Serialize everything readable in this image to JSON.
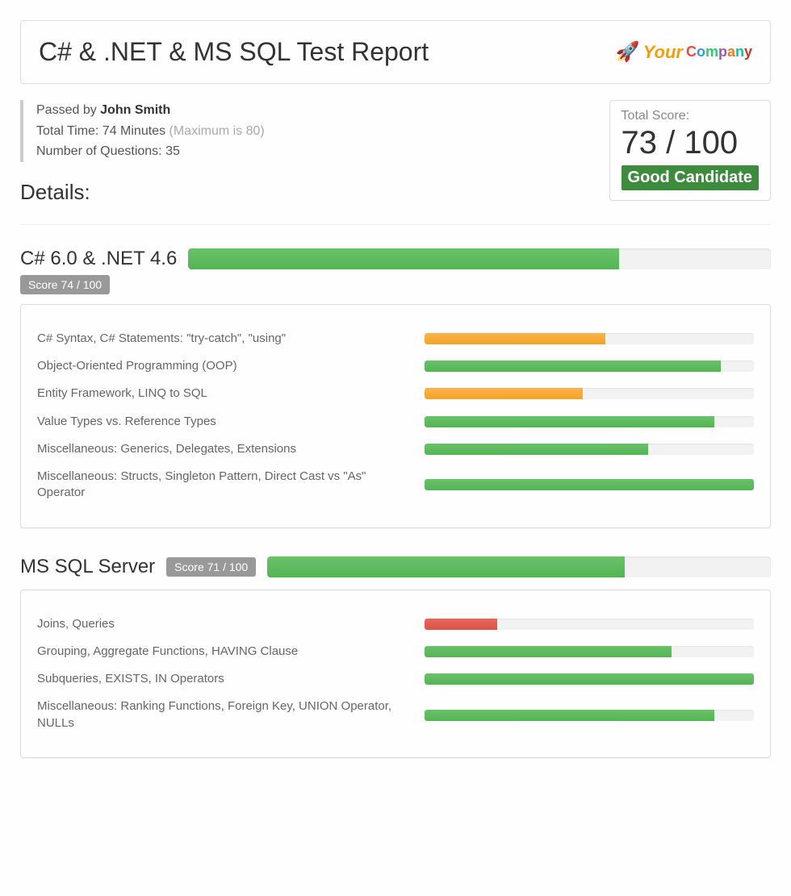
{
  "header": {
    "title": "C# & .NET & MS SQL Test Report",
    "logo": {
      "rocket": "🚀",
      "word1": "Your",
      "word2": "Company"
    }
  },
  "summary": {
    "passed_label": "Passed by ",
    "person_name": "John Smith",
    "time_label": "Total Time: 74 Minutes ",
    "time_max": "(Maximum is 80)",
    "questions_label": "Number of Questions: 35"
  },
  "score_box": {
    "label": "Total Score:",
    "score_text": "73 / 100",
    "candidate_label": "Good Candidate",
    "badge_bg": "#3d8b3d"
  },
  "details_heading": "Details:",
  "progress_colors": {
    "green_top": "#6ac16a",
    "green_bottom": "#53b553",
    "orange_top": "#fbb24c",
    "orange_bottom": "#f6a325",
    "red_top": "#e66a5e",
    "red_bottom": "#dd5145",
    "track": "#f2f2f2"
  },
  "sections": [
    {
      "title": "C# 6.0 & .NET 4.6",
      "score_chip": "Score 74 / 100",
      "chip_position": "below",
      "overall_percent": 74,
      "overall_color": "green",
      "topics": [
        {
          "label": "C# Syntax, C# Statements: \"try-catch\", \"using\"",
          "percent": 55,
          "color": "orange"
        },
        {
          "label": "Object-Oriented Programming (OOP)",
          "percent": 90,
          "color": "green"
        },
        {
          "label": "Entity Framework, LINQ to SQL",
          "percent": 48,
          "color": "orange"
        },
        {
          "label": "Value Types vs. Reference Types",
          "percent": 88,
          "color": "green"
        },
        {
          "label": "Miscellaneous: Generics, Delegates, Extensions",
          "percent": 68,
          "color": "green"
        },
        {
          "label": "Miscellaneous: Structs, Singleton Pattern, Direct Cast vs \"As\" Operator",
          "percent": 100,
          "color": "green"
        }
      ]
    },
    {
      "title": "MS SQL Server",
      "score_chip": "Score 71 / 100",
      "chip_position": "inline",
      "overall_percent": 71,
      "overall_color": "green",
      "topics": [
        {
          "label": "Joins, Queries",
          "percent": 22,
          "color": "red"
        },
        {
          "label": "Grouping, Aggregate Functions, HAVING Clause",
          "percent": 75,
          "color": "green"
        },
        {
          "label": "Subqueries, EXISTS, IN Operators",
          "percent": 100,
          "color": "green"
        },
        {
          "label": "Miscellaneous: Ranking Functions, Foreign Key, UNION Operator, NULLs",
          "percent": 88,
          "color": "green"
        }
      ]
    }
  ]
}
